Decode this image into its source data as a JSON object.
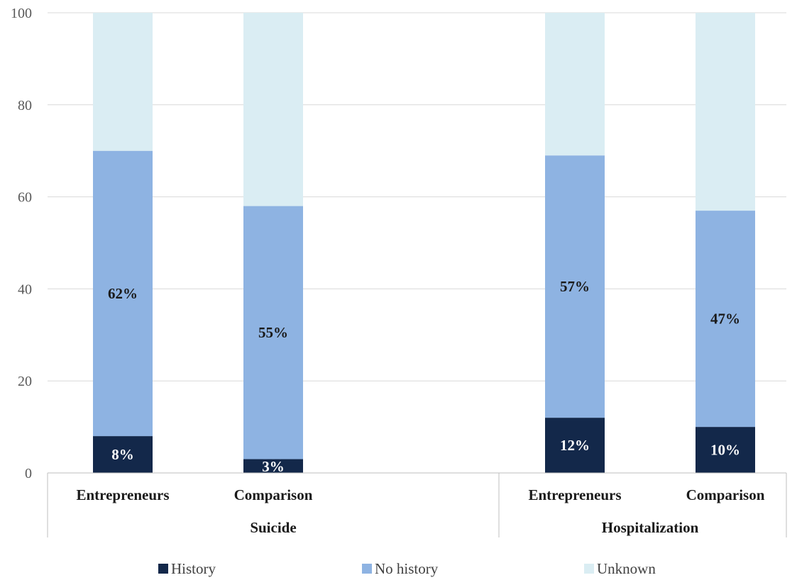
{
  "chart_data": {
    "type": "bar",
    "stacked": true,
    "ylim": [
      0,
      100
    ],
    "yticks": [
      0,
      20,
      40,
      60,
      80,
      100
    ],
    "grid": true,
    "legend_position": "bottom",
    "groups": [
      {
        "label": "Suicide",
        "categories": [
          "Entrepreneurs",
          "Comparison"
        ]
      },
      {
        "label": "Hospitalization",
        "categories": [
          "Entrepreneurs",
          "Comparison"
        ]
      }
    ],
    "series": [
      {
        "name": "History",
        "color": "#13284a",
        "label_color": "#ffffff",
        "values": [
          8,
          3,
          12,
          10
        ],
        "labels": [
          "8%",
          "3%",
          "12%",
          "10%"
        ]
      },
      {
        "name": "No history",
        "color": "#8eb3e2",
        "label_color": "#1a1a1a",
        "values": [
          62,
          55,
          57,
          47
        ],
        "labels": [
          "62%",
          "55%",
          "57%",
          "47%"
        ]
      },
      {
        "name": "Unknown",
        "color": "#daedf3",
        "label_color": "#1a1a1a",
        "values": [
          30,
          42,
          31,
          43
        ],
        "labels": [
          "",
          "",
          "",
          ""
        ]
      }
    ]
  }
}
